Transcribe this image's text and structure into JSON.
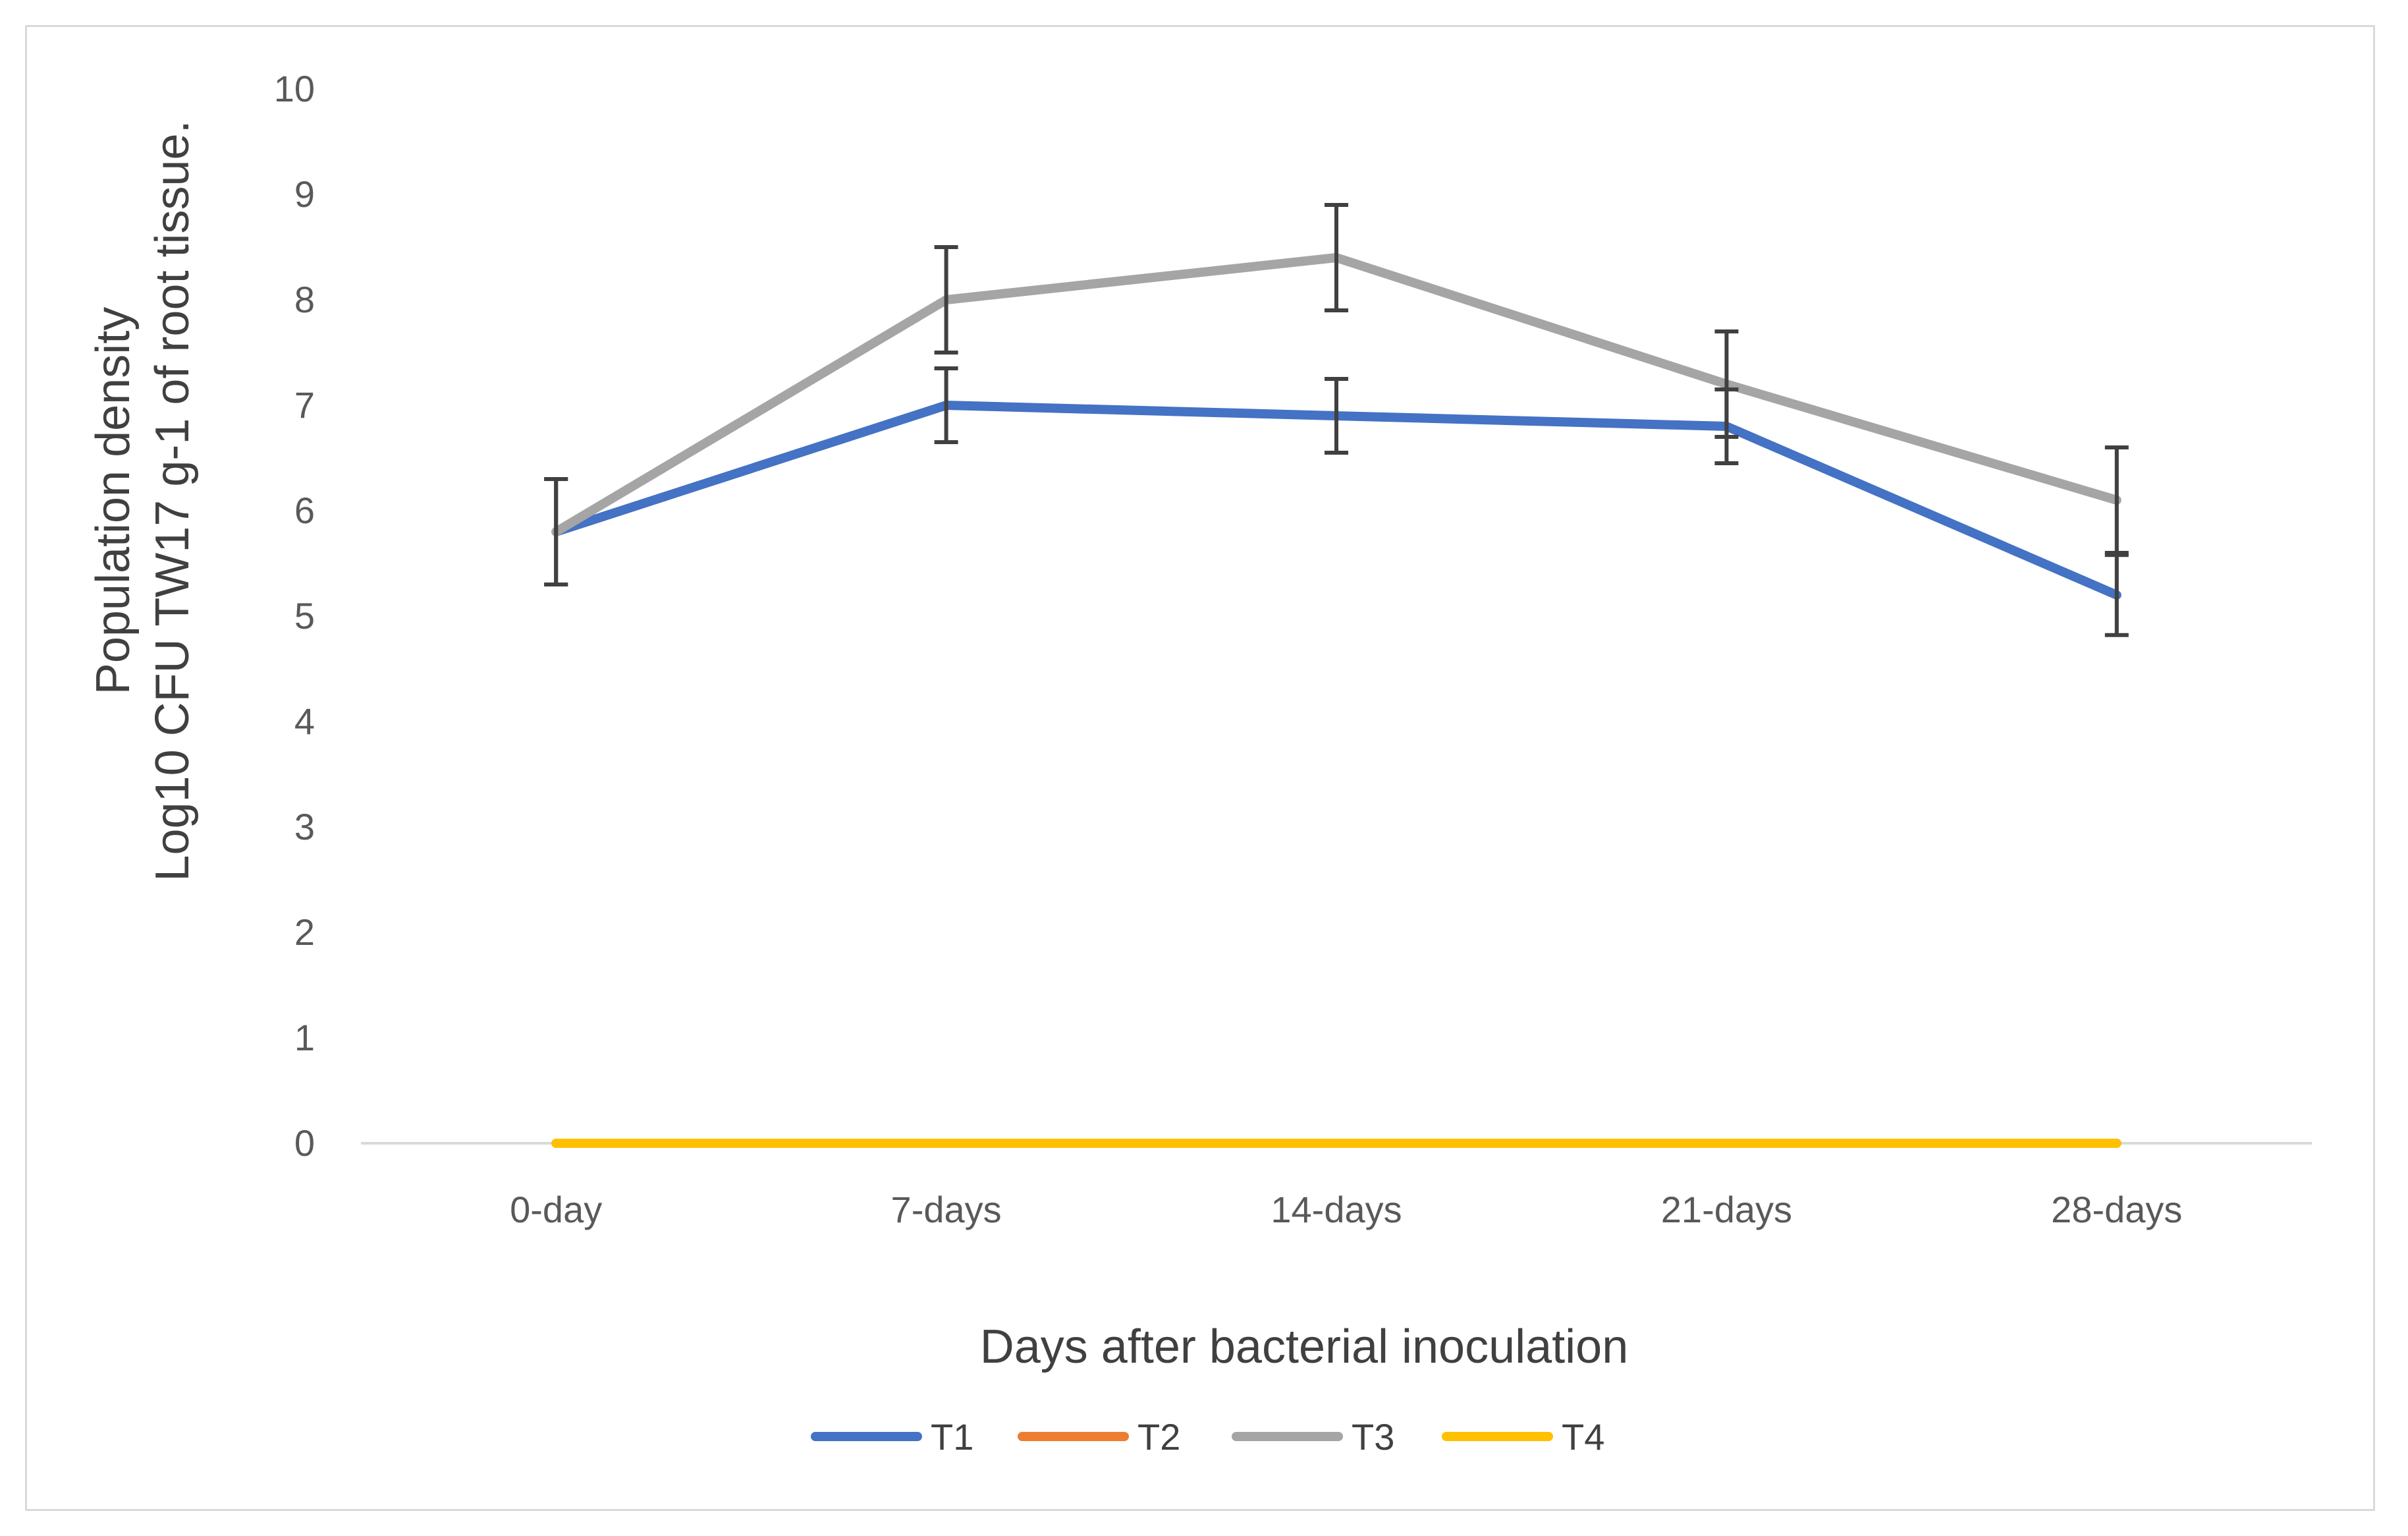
{
  "chart_data": {
    "type": "line",
    "title": "",
    "xlabel": "Days after bacterial inoculation",
    "ylabel_lines": [
      "Population density",
      "Log10 CFU TW17 g-1 of root tissue."
    ],
    "categories": [
      "0-day",
      "7-days",
      "14-days",
      "21-days",
      "28-days"
    ],
    "ylim": [
      0,
      10
    ],
    "yticks": [
      "0",
      "1",
      "2",
      "3",
      "4",
      "5",
      "6",
      "7",
      "8",
      "9",
      "10"
    ],
    "grid": false,
    "legend_position": "bottom",
    "series": [
      {
        "name": "T1",
        "color": "#4472C4",
        "values": [
          5.8,
          7.0,
          6.9,
          6.8,
          5.2
        ],
        "error": [
          0.5,
          0.35,
          0.35,
          0.35,
          0.38
        ]
      },
      {
        "name": "T2",
        "color": "#ED7D31",
        "values": [
          0,
          0,
          0,
          0,
          0
        ],
        "error": null
      },
      {
        "name": "T3",
        "color": "#A5A5A5",
        "values": [
          5.8,
          8.0,
          8.4,
          7.2,
          6.1
        ],
        "error": [
          0.5,
          0.5,
          0.5,
          0.5,
          0.5
        ]
      },
      {
        "name": "T4",
        "color": "#FFC000",
        "values": [
          0,
          0,
          0,
          0,
          0
        ],
        "error": null
      }
    ]
  }
}
